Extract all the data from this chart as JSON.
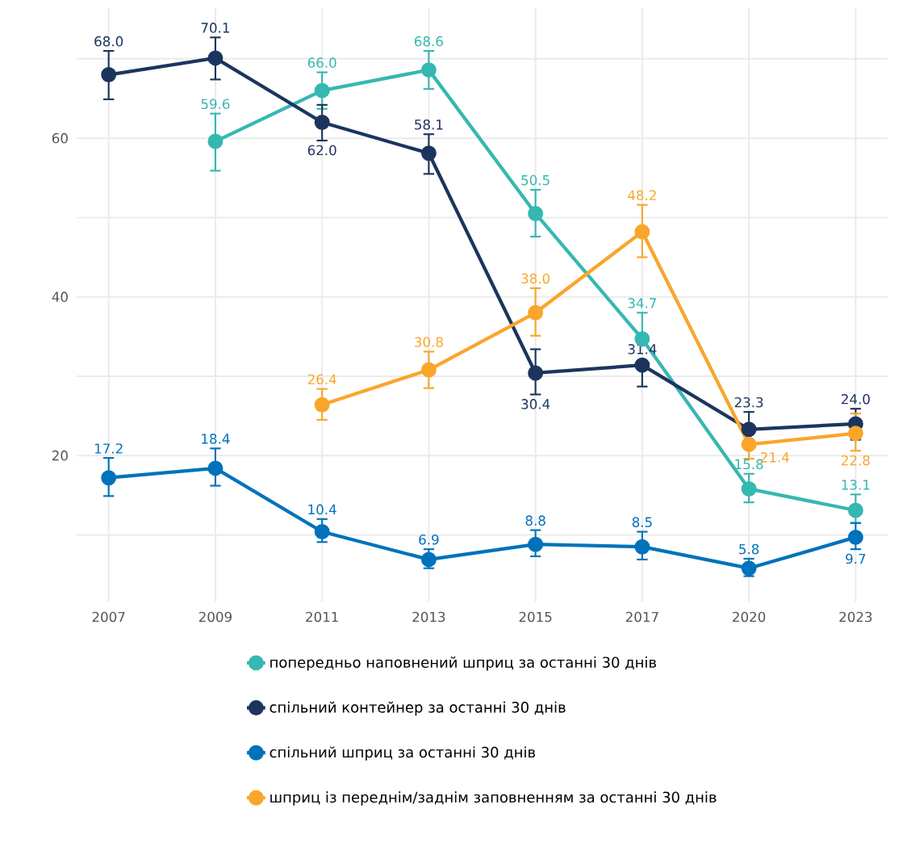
{
  "chart_data": {
    "type": "line",
    "categories": [
      "2007",
      "2009",
      "2011",
      "2013",
      "2015",
      "2017",
      "2020",
      "2023"
    ],
    "ylim": [
      1.6,
      76.4
    ],
    "yticks": [
      {
        "value": 10,
        "label": null
      },
      20,
      {
        "value": 30,
        "label": null
      },
      40,
      {
        "value": 50,
        "label": null
      },
      60,
      {
        "value": 70,
        "label": null
      }
    ],
    "grid": true,
    "legend": "bottom",
    "marker": "circle",
    "line_style": "solid",
    "series": [
      {
        "name": "попередньо наповнений шприц за останні 30 днів",
        "color": "#35b8b1",
        "values": [
          null,
          59.6,
          66.0,
          68.6,
          50.5,
          34.7,
          15.8,
          13.1
        ],
        "value_labels": [
          null,
          "59.6",
          "66.0",
          "68.6",
          "50.5",
          "34.7",
          "15.8",
          "13.1"
        ],
        "errors": [
          null,
          [
            55.9,
            63.1
          ],
          [
            63.7,
            68.3
          ],
          [
            66.2,
            71.0
          ],
          [
            47.6,
            53.5
          ],
          [
            34.7,
            38.0
          ],
          [
            14.1,
            17.7
          ],
          [
            11.5,
            15.1
          ]
        ]
      },
      {
        "name": "спільний контейнер за останні 30 днів",
        "color": "#1b355e",
        "values": [
          68.0,
          70.1,
          62.0,
          58.1,
          30.4,
          31.4,
          23.3,
          24.0
        ],
        "value_labels": [
          "68.0",
          "70.1",
          "62.0",
          "58.1",
          "30.4",
          "31.4",
          "23.3",
          "24.0"
        ],
        "errors": [
          [
            64.9,
            71.0
          ],
          [
            67.4,
            72.7
          ],
          [
            59.7,
            64.2
          ],
          [
            55.5,
            60.5
          ],
          [
            27.7,
            33.4
          ],
          [
            28.7,
            31.4
          ],
          [
            23.3,
            25.5
          ],
          [
            22.0,
            25.9
          ]
        ]
      },
      {
        "name": "спільний шприц за останні 30 днів",
        "color": "#0072bb",
        "values": [
          17.2,
          18.4,
          10.4,
          6.9,
          8.8,
          8.5,
          5.8,
          9.7
        ],
        "value_labels": [
          "17.2",
          "18.4",
          "10.4",
          "6.9",
          "8.8",
          "8.5",
          "5.8",
          "9.7"
        ],
        "errors": [
          [
            14.9,
            19.7
          ],
          [
            16.2,
            20.9
          ],
          [
            9.1,
            12.0
          ],
          [
            5.8,
            8.2
          ],
          [
            7.3,
            10.6
          ],
          [
            6.9,
            10.4
          ],
          [
            4.8,
            7.0
          ],
          [
            8.2,
            11.5
          ]
        ]
      },
      {
        "name": "шприц із переднім/заднім заповненням за останні 30 днів",
        "color": "#f9a62b",
        "values": [
          null,
          null,
          26.4,
          30.8,
          38.0,
          48.2,
          21.4,
          22.8
        ],
        "value_labels": [
          null,
          null,
          "26.4",
          "30.8",
          "38.0",
          "48.2",
          "21.4",
          "22.8"
        ],
        "errors": [
          null,
          null,
          [
            24.5,
            28.4
          ],
          [
            28.5,
            33.1
          ],
          [
            35.1,
            41.1
          ],
          [
            45.0,
            51.6
          ],
          [
            19.6,
            21.4
          ],
          [
            20.6,
            25.3
          ]
        ]
      }
    ]
  }
}
